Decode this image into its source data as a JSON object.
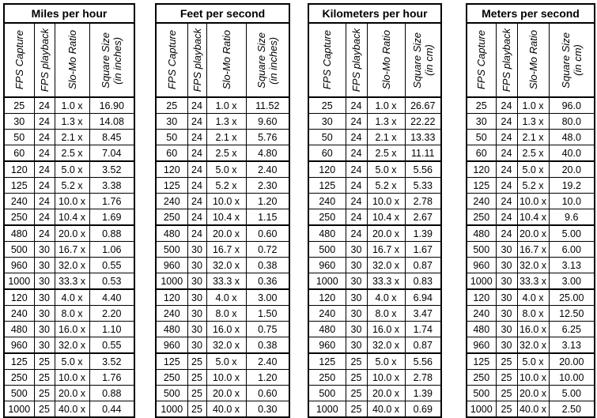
{
  "tables": [
    {
      "title": "Miles per hour",
      "headers": [
        [
          "FPS Capture"
        ],
        [
          "FPS playback"
        ],
        [
          "Slo-Mo Ratio"
        ],
        [
          "Square Size",
          "(in inches)"
        ]
      ],
      "rows": [
        [
          "25",
          "24",
          "1.0 x",
          "16.90"
        ],
        [
          "30",
          "24",
          "1.3 x",
          "14.08"
        ],
        [
          "50",
          "24",
          "2.1 x",
          "8.45"
        ],
        [
          "60",
          "24",
          "2.5 x",
          "7.04"
        ],
        [
          "120",
          "24",
          "5.0 x",
          "3.52"
        ],
        [
          "125",
          "24",
          "5.2 x",
          "3.38"
        ],
        [
          "240",
          "24",
          "10.0 x",
          "1.76"
        ],
        [
          "250",
          "24",
          "10.4 x",
          "1.69"
        ],
        [
          "480",
          "24",
          "20.0 x",
          "0.88"
        ],
        [
          "500",
          "30",
          "16.7 x",
          "1.06"
        ],
        [
          "960",
          "30",
          "32.0 x",
          "0.55"
        ],
        [
          "1000",
          "30",
          "33.3 x",
          "0.53"
        ],
        [
          "120",
          "30",
          "4.0 x",
          "4.40"
        ],
        [
          "240",
          "30",
          "8.0 x",
          "2.20"
        ],
        [
          "480",
          "30",
          "16.0 x",
          "1.10"
        ],
        [
          "960",
          "30",
          "32.0 x",
          "0.55"
        ],
        [
          "125",
          "25",
          "5.0 x",
          "3.52"
        ],
        [
          "250",
          "25",
          "10.0 x",
          "1.76"
        ],
        [
          "500",
          "25",
          "20.0 x",
          "0.88"
        ],
        [
          "1000",
          "25",
          "40.0 x",
          "0.44"
        ]
      ]
    },
    {
      "title": "Feet per second",
      "headers": [
        [
          "FPS Capture"
        ],
        [
          "FPS playback"
        ],
        [
          "Slo-Mo Ratio"
        ],
        [
          "Square Size",
          "(in inches)"
        ]
      ],
      "rows": [
        [
          "25",
          "24",
          "1.0 x",
          "11.52"
        ],
        [
          "30",
          "24",
          "1.3 x",
          "9.60"
        ],
        [
          "50",
          "24",
          "2.1 x",
          "5.76"
        ],
        [
          "60",
          "24",
          "2.5 x",
          "4.80"
        ],
        [
          "120",
          "24",
          "5.0 x",
          "2.40"
        ],
        [
          "125",
          "24",
          "5.2 x",
          "2.30"
        ],
        [
          "240",
          "24",
          "10.0 x",
          "1.20"
        ],
        [
          "250",
          "24",
          "10.4 x",
          "1.15"
        ],
        [
          "480",
          "24",
          "20.0 x",
          "0.60"
        ],
        [
          "500",
          "30",
          "16.7 x",
          "0.72"
        ],
        [
          "960",
          "30",
          "32.0 x",
          "0.38"
        ],
        [
          "1000",
          "30",
          "33.3 x",
          "0.36"
        ],
        [
          "120",
          "30",
          "4.0 x",
          "3.00"
        ],
        [
          "240",
          "30",
          "8.0 x",
          "1.50"
        ],
        [
          "480",
          "30",
          "16.0 x",
          "0.75"
        ],
        [
          "960",
          "30",
          "32.0 x",
          "0.38"
        ],
        [
          "125",
          "25",
          "5.0 x",
          "2.40"
        ],
        [
          "250",
          "25",
          "10.0 x",
          "1.20"
        ],
        [
          "500",
          "25",
          "20.0 x",
          "0.60"
        ],
        [
          "1000",
          "25",
          "40.0 x",
          "0.30"
        ]
      ]
    },
    {
      "title": "Kilometers per hour",
      "headers": [
        [
          "FPS Capture"
        ],
        [
          "FPS playback"
        ],
        [
          "Slo-Mo Ratio"
        ],
        [
          "Square Size",
          "(in cm)"
        ]
      ],
      "rows": [
        [
          "25",
          "24",
          "1.0 x",
          "26.67"
        ],
        [
          "30",
          "24",
          "1.3 x",
          "22.22"
        ],
        [
          "50",
          "24",
          "2.1 x",
          "13.33"
        ],
        [
          "60",
          "24",
          "2.5 x",
          "11.11"
        ],
        [
          "120",
          "24",
          "5.0 x",
          "5.56"
        ],
        [
          "125",
          "24",
          "5.2 x",
          "5.33"
        ],
        [
          "240",
          "24",
          "10.0 x",
          "2.78"
        ],
        [
          "250",
          "24",
          "10.4 x",
          "2.67"
        ],
        [
          "480",
          "24",
          "20.0 x",
          "1.39"
        ],
        [
          "500",
          "30",
          "16.7 x",
          "1.67"
        ],
        [
          "960",
          "30",
          "32.0 x",
          "0.87"
        ],
        [
          "1000",
          "30",
          "33.3 x",
          "0.83"
        ],
        [
          "120",
          "30",
          "4.0 x",
          "6.94"
        ],
        [
          "240",
          "30",
          "8.0 x",
          "3.47"
        ],
        [
          "480",
          "30",
          "16.0 x",
          "1.74"
        ],
        [
          "960",
          "30",
          "32.0 x",
          "0.87"
        ],
        [
          "125",
          "25",
          "5.0 x",
          "5.56"
        ],
        [
          "250",
          "25",
          "10.0 x",
          "2.78"
        ],
        [
          "500",
          "25",
          "20.0 x",
          "1.39"
        ],
        [
          "1000",
          "25",
          "40.0 x",
          "0.69"
        ]
      ]
    },
    {
      "title": "Meters per second",
      "headers": [
        [
          "FPS Capture"
        ],
        [
          "FPS playback"
        ],
        [
          "Slo-Mo Ratio"
        ],
        [
          "Square Size",
          "(in cm)"
        ]
      ],
      "rows": [
        [
          "25",
          "24",
          "1.0 x",
          "96.0"
        ],
        [
          "30",
          "24",
          "1.3 x",
          "80.0"
        ],
        [
          "50",
          "24",
          "2.1 x",
          "48.0"
        ],
        [
          "60",
          "24",
          "2.5 x",
          "40.0"
        ],
        [
          "120",
          "24",
          "5.0 x",
          "20.0"
        ],
        [
          "125",
          "24",
          "5.2 x",
          "19.2"
        ],
        [
          "240",
          "24",
          "10.0 x",
          "10.0"
        ],
        [
          "250",
          "24",
          "10.4 x",
          "9.6"
        ],
        [
          "480",
          "24",
          "20.0 x",
          "5.00"
        ],
        [
          "500",
          "30",
          "16.7 x",
          "6.00"
        ],
        [
          "960",
          "30",
          "32.0 x",
          "3.13"
        ],
        [
          "1000",
          "30",
          "33.3 x",
          "3.00"
        ],
        [
          "120",
          "30",
          "4.0 x",
          "25.00"
        ],
        [
          "240",
          "30",
          "8.0 x",
          "12.50"
        ],
        [
          "480",
          "30",
          "16.0 x",
          "6.25"
        ],
        [
          "960",
          "30",
          "32.0 x",
          "3.13"
        ],
        [
          "125",
          "25",
          "5.0 x",
          "20.00"
        ],
        [
          "250",
          "25",
          "10.0 x",
          "10.00"
        ],
        [
          "500",
          "25",
          "20.0 x",
          "5.00"
        ],
        [
          "1000",
          "25",
          "40.0 x",
          "2.50"
        ]
      ]
    }
  ]
}
